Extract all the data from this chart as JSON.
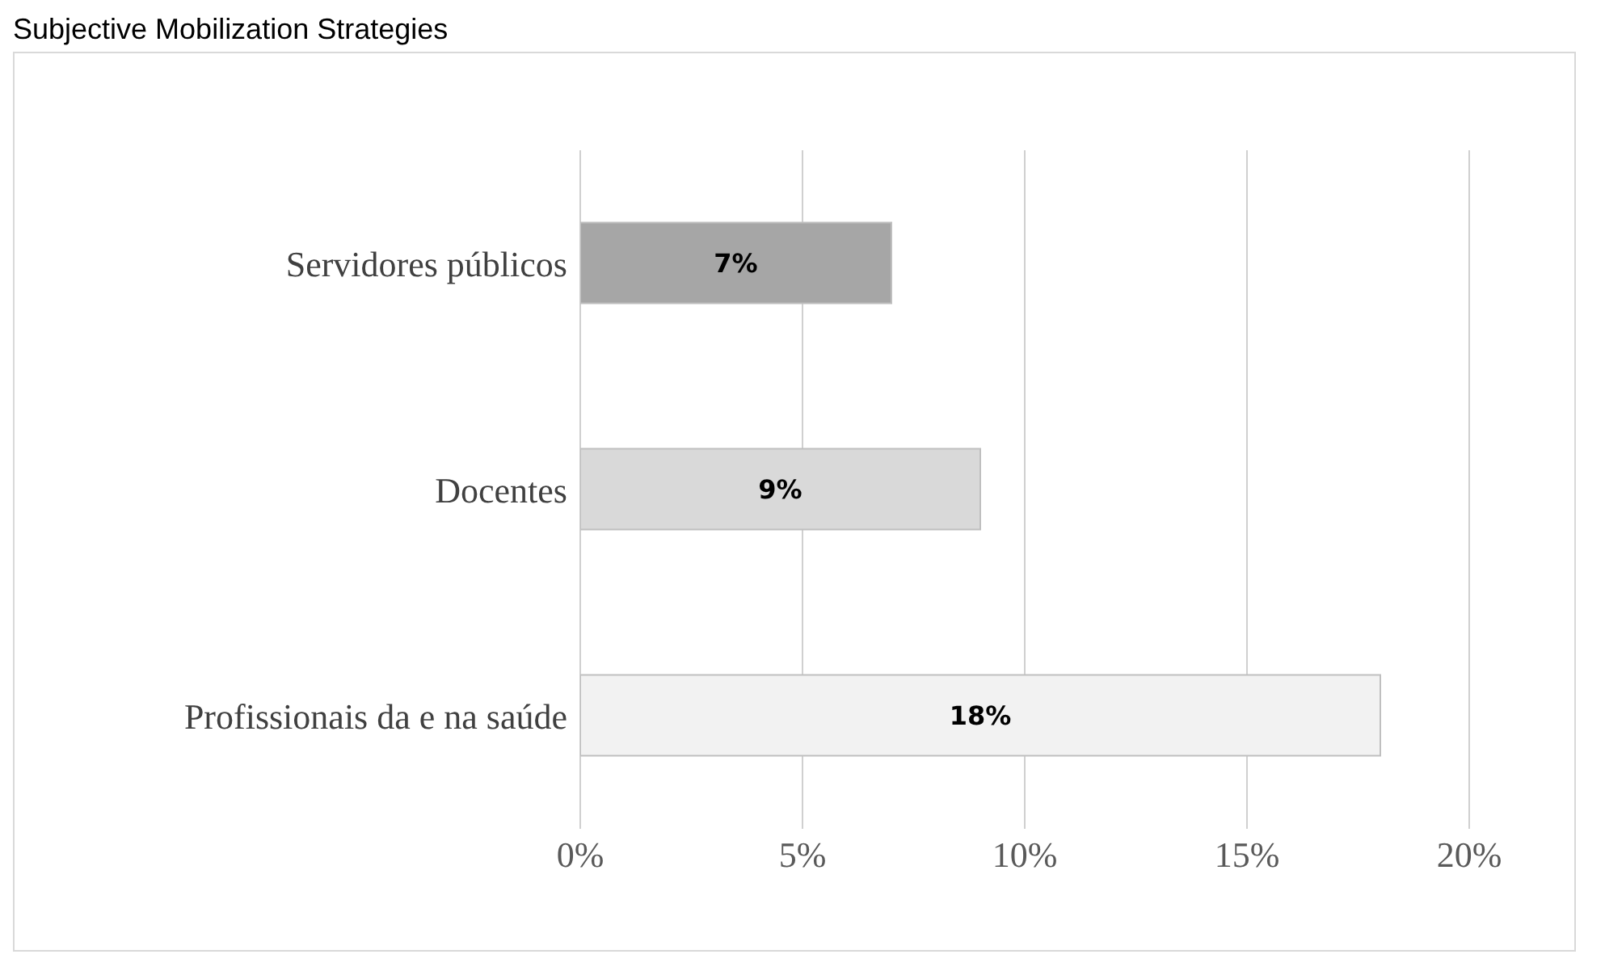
{
  "chart_data": {
    "type": "bar",
    "orientation": "horizontal",
    "title": "Subjective Mobilization Strategies",
    "categories": [
      "Servidores públicos",
      "Docentes",
      "Profissionais da e na saúde"
    ],
    "values": [
      7,
      9,
      18
    ],
    "colors": [
      "#a6a6a6",
      "#d9d9d9",
      "#f2f2f2"
    ],
    "value_labels": [
      "7%",
      "9%",
      "18%"
    ],
    "xlim": [
      0,
      20
    ],
    "xticks": [
      {
        "value": 0,
        "label": "0%"
      },
      {
        "value": 5,
        "label": "5%"
      },
      {
        "value": 10,
        "label": "10%"
      },
      {
        "value": 15,
        "label": "15%"
      },
      {
        "value": 20,
        "label": "20%"
      }
    ],
    "grid": "x"
  }
}
